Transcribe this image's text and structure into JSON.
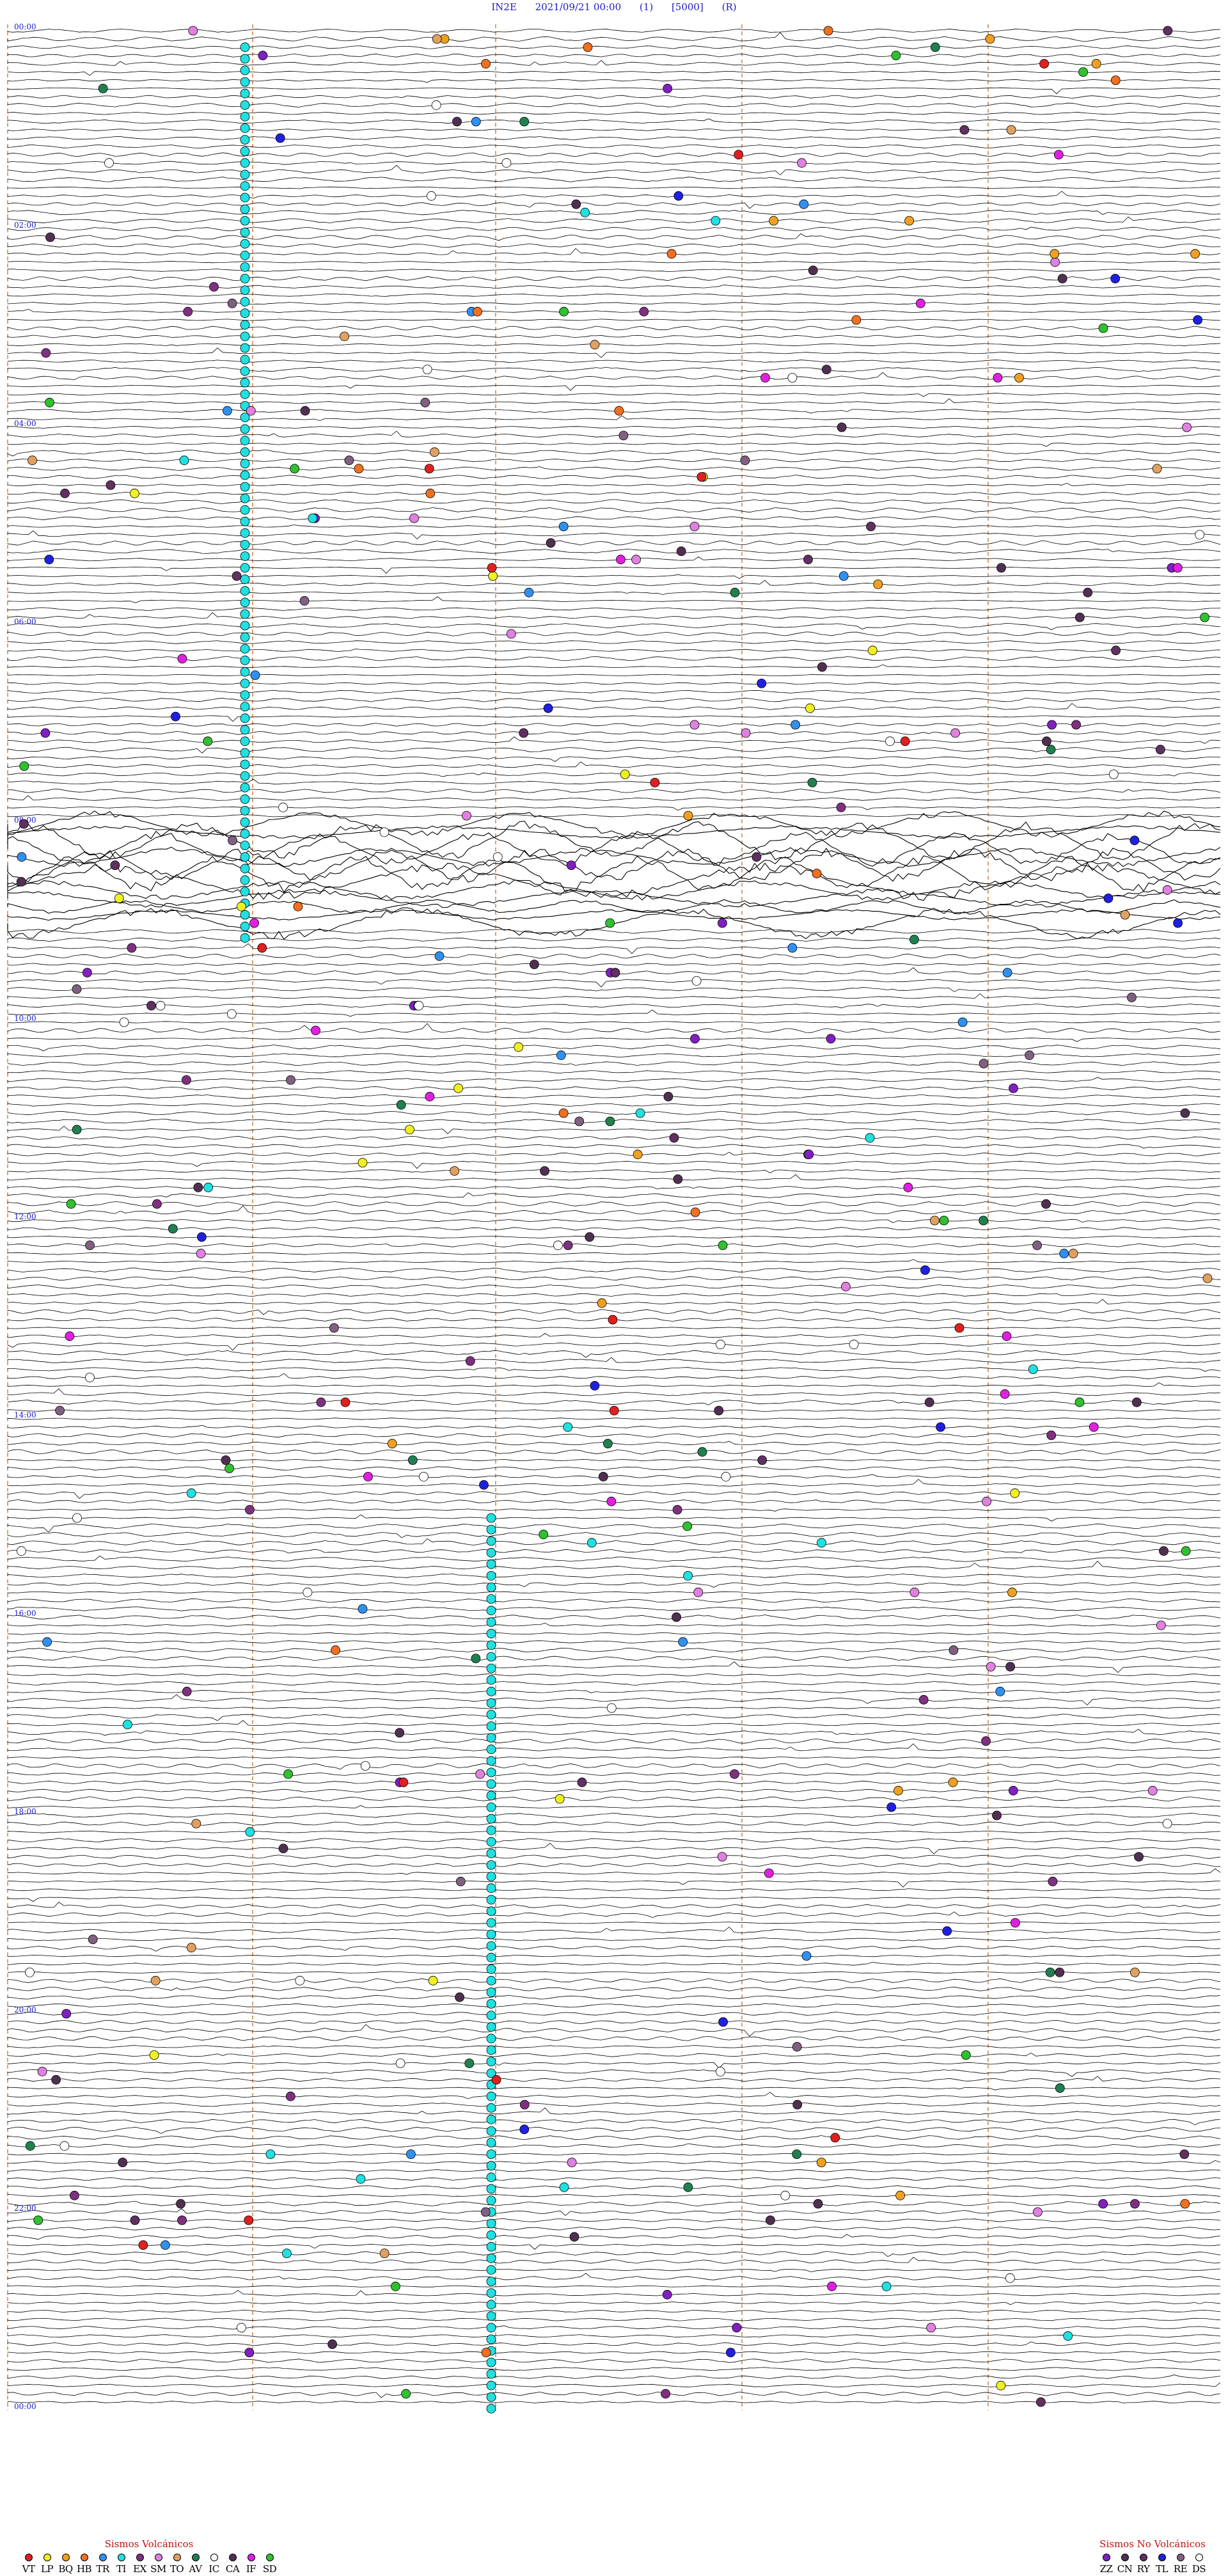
{
  "header": {
    "station": "IN2E",
    "datetime": "2021/09/21 00:00",
    "param1": "(1)",
    "param2": "[5000]",
    "param3": "(R)"
  },
  "time_labels": [
    "00:00",
    "02:00",
    "04:00",
    "06:00",
    "08:00",
    "10:00",
    "12:00",
    "14:00",
    "16:00",
    "18:00",
    "20:00",
    "22:00",
    "00:00"
  ],
  "legend_volcanic": {
    "title": "Sismos Volcánicos",
    "items": [
      {
        "code": "VT",
        "color": "#e02020"
      },
      {
        "code": "LP",
        "color": "#f0f020"
      },
      {
        "code": "BQ",
        "color": "#f0a020"
      },
      {
        "code": "HB",
        "color": "#f07020"
      },
      {
        "code": "TR",
        "color": "#3090f0"
      },
      {
        "code": "TI",
        "color": "#20e0e0"
      },
      {
        "code": "EX",
        "color": "#803080"
      },
      {
        "code": "SM",
        "color": "#e080e0"
      },
      {
        "code": "TO",
        "color": "#e0a060"
      },
      {
        "code": "AV",
        "color": "#208050"
      },
      {
        "code": "IC",
        "color": "#ffffff"
      },
      {
        "code": "CA",
        "color": "#503050"
      },
      {
        "code": "IF",
        "color": "#e020e0"
      },
      {
        "code": "SD",
        "color": "#30c030"
      }
    ]
  },
  "legend_nonvolcanic": {
    "title": "Sismos No Volcánicos",
    "items": [
      {
        "code": "ZZ",
        "color": "#8020c0"
      },
      {
        "code": "CN",
        "color": "#503050"
      },
      {
        "code": "RY",
        "color": "#603060"
      },
      {
        "code": "TL",
        "color": "#2020e0"
      },
      {
        "code": "RE",
        "color": "#806080"
      },
      {
        "code": "DS",
        "color": "#ffffff"
      }
    ]
  },
  "colors": {
    "trace": "#000000",
    "time_marker": "#d08040",
    "label": "#1a1ac8"
  }
}
